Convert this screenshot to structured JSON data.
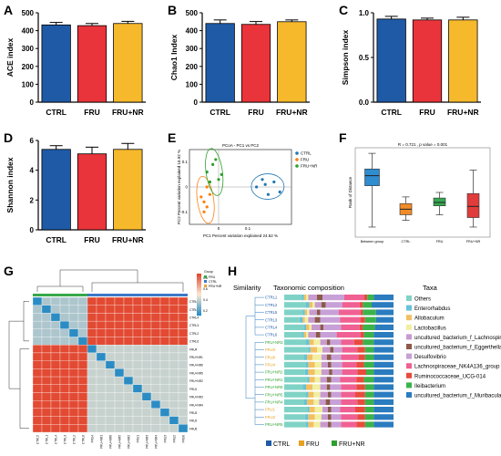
{
  "colors": {
    "CTRL": "#1f5aa6",
    "FRU": "#e8343a",
    "FRU+NR": "#f6b92c",
    "pcoa_ctrl": "#1f77b4",
    "pcoa_fru": "#ff7f0e",
    "pcoa_frunr": "#2ca02c",
    "heat_low": "#2b8cc4",
    "heat_mid": "#fbe9d2",
    "heat_high": "#e24a33",
    "box_fill": "#2f8ccf",
    "box_ctrl": "#f28c28",
    "box_fru": "#36a852",
    "box_frunr": "#e03c3c"
  },
  "panels": {
    "A": "A",
    "B": "B",
    "C": "C",
    "D": "D",
    "E": "E",
    "F": "F",
    "G": "G",
    "H": "H"
  },
  "pcoa": {
    "title": "PCoA - PC1 vs PC2",
    "xlabel": "PC1 Percent variation explained 24.62 %",
    "ylabel": "PC2 Percent variation explained 16.92 %",
    "legend": [
      "CTRL",
      "FRU",
      "FRU+NR"
    ],
    "xticks": [
      "0",
      "0.1"
    ],
    "yticks": [
      "0.1",
      "0",
      "-0.1"
    ]
  },
  "boxplot": {
    "title": "R = 0.721 , p value = 0.001",
    "ylabel": "Rank of Distance",
    "categories": [
      "Between group",
      "CTRL",
      "FRU",
      "FRU+NR"
    ]
  },
  "heatmap": {
    "legend_title": "Group",
    "legend_items": [
      "FRU",
      "CTRL",
      "FRU+NR"
    ],
    "row_labels": [
      "CTRL5",
      "CTRL1",
      "CTRL4",
      "CTRL3",
      "CTRL2",
      "CTRL6",
      "FRU4",
      "FRU+NR1",
      "FRU+NR6",
      "FRU+NR5",
      "FRU+NR2",
      "FRU1",
      "FRU+NR3",
      "FRU+NR4",
      "FRU3",
      "FRU2",
      "FRU6"
    ],
    "col_labels": [
      "CTRL5",
      "CTRL1",
      "CTRL4",
      "CTRL3",
      "CTRL2",
      "CTRL6",
      "FRU4",
      "FRU+NR1",
      "FRU+NR6",
      "FRU+NR5",
      "FRU+NR2",
      "FRU1",
      "FRU+NR3",
      "FRU+NR4",
      "FRU3",
      "FRU2",
      "FRU6"
    ],
    "scale_ticks": [
      "0.8",
      "0.6",
      "0.4",
      "0.2"
    ]
  },
  "taxa_panel": {
    "similarity_label": "Similarity",
    "composition_label": "Taxonomic composition",
    "taxa_label": "Taxa",
    "samples": [
      "CTRL1",
      "CTRL2",
      "CTRL5",
      "CTRL3",
      "CTRL4",
      "CTRL6",
      "FRU+NR3",
      "FRU3",
      "FRU6",
      "FRU4",
      "FRU+NR2",
      "FRU+NR1",
      "FRU+NR6",
      "FRU+NR5",
      "FRU+NR4",
      "FRU1",
      "FRU2",
      "FRU+NR5"
    ],
    "taxa": [
      "Others",
      "Enterorhabdus",
      "Allobaculum",
      "Lactobacillus",
      "uncultured_bacterium_f_Lachnospiraceae",
      "uncultured_bacterium_f_Eggerthellaceae",
      "Desulfovibrio",
      "Lachnospiraceae_NK4A136_group",
      "Ruminococcaceae_UCG-014",
      "Ileibacterium",
      "uncultured_bacterium_f_Muribaculaceae"
    ],
    "taxa_colors": [
      "#7fd3c6",
      "#66c3d8",
      "#f2c063",
      "#f1efa0",
      "#c79bd0",
      "#8c5a4a",
      "#c8a0d8",
      "#f06092",
      "#e84b3c",
      "#3ab34a",
      "#2a7cbf"
    ],
    "group_legend": [
      "CTRL",
      "FRU",
      "FRU+NR"
    ]
  },
  "chart_data": [
    {
      "type": "bar",
      "panel": "A",
      "ylabel": "ACE index",
      "categories": [
        "CTRL",
        "FRU",
        "FRU+NR"
      ],
      "values": [
        432,
        428,
        440
      ],
      "errors": [
        14,
        12,
        12
      ],
      "ylim": [
        0,
        500
      ],
      "yticks": [
        0,
        100,
        200,
        300,
        400,
        500
      ]
    },
    {
      "type": "bar",
      "panel": "B",
      "ylabel": "Chao1 Index",
      "categories": [
        "CTRL",
        "FRU",
        "FRU+NR"
      ],
      "values": [
        440,
        435,
        450
      ],
      "errors": [
        20,
        16,
        10
      ],
      "ylim": [
        0,
        500
      ],
      "yticks": [
        0,
        100,
        200,
        300,
        400,
        500
      ]
    },
    {
      "type": "bar",
      "panel": "C",
      "ylabel": "Simpson index",
      "categories": [
        "CTRL",
        "FRU",
        "FRU+NR"
      ],
      "values": [
        0.93,
        0.92,
        0.92
      ],
      "errors": [
        0.03,
        0.02,
        0.03
      ],
      "ylim": [
        0,
        1.0
      ],
      "yticks": [
        0.0,
        0.5,
        1.0
      ],
      "ytick_labels": [
        "0.0",
        "0.5",
        "1.0"
      ]
    },
    {
      "type": "bar",
      "panel": "D",
      "ylabel": "Shannon index",
      "categories": [
        "CTRL",
        "FRU",
        "FRU+NR"
      ],
      "values": [
        5.4,
        5.1,
        5.4
      ],
      "errors": [
        0.25,
        0.45,
        0.4
      ],
      "ylim": [
        0,
        6
      ],
      "yticks": [
        0,
        2,
        4,
        6
      ]
    },
    {
      "type": "scatter",
      "panel": "E",
      "series": [
        {
          "name": "CTRL",
          "x": [
            0.13,
            0.15,
            0.17,
            0.19,
            0.16,
            0.21
          ],
          "y": [
            0.0,
            0.03,
            -0.03,
            0.02,
            0.01,
            -0.02
          ]
        },
        {
          "name": "FRU",
          "x": [
            -0.06,
            -0.05,
            -0.04,
            -0.03,
            -0.05,
            -0.04
          ],
          "y": [
            -0.04,
            -0.06,
            -0.08,
            -0.03,
            -0.1,
            0.0
          ]
        },
        {
          "name": "FRU+NR",
          "x": [
            -0.04,
            -0.02,
            -0.01,
            0.0,
            -0.03,
            0.01
          ],
          "y": [
            0.06,
            0.09,
            0.11,
            0.03,
            0.02,
            0.05
          ]
        }
      ]
    },
    {
      "type": "box",
      "panel": "F",
      "categories": [
        "Between group",
        "CTRL",
        "FRU",
        "FRU+NR"
      ],
      "boxes": [
        {
          "min": 18,
          "q1": 92,
          "median": 110,
          "q3": 122,
          "max": 150
        },
        {
          "min": 30,
          "q1": 40,
          "median": 50,
          "q3": 60,
          "max": 72
        },
        {
          "min": 40,
          "q1": 56,
          "median": 62,
          "q3": 70,
          "max": 80
        },
        {
          "min": 18,
          "q1": 35,
          "median": 55,
          "q3": 78,
          "max": 120
        }
      ],
      "ylim": [
        0,
        160
      ]
    },
    {
      "type": "heatmap",
      "panel": "G",
      "blocks": [
        {
          "rows": [
            0,
            6
          ],
          "cols": [
            0,
            6
          ],
          "value": 0.25
        },
        {
          "rows": [
            6,
            17
          ],
          "cols": [
            6,
            17
          ],
          "value": 0.3
        },
        {
          "rows": [
            0,
            6
          ],
          "cols": [
            6,
            17
          ],
          "value": 0.8
        },
        {
          "rows": [
            6,
            17
          ],
          "cols": [
            0,
            6
          ],
          "value": 0.8
        }
      ],
      "diagonal": 0.0,
      "scale": [
        0,
        0.8
      ]
    },
    {
      "type": "bar",
      "panel": "H",
      "stacked": true,
      "orientation": "horizontal",
      "samples": [
        "CTRL1",
        "CTRL2",
        "CTRL5",
        "CTRL3",
        "CTRL4",
        "CTRL6",
        "FRU+NR3",
        "FRU3",
        "FRU6",
        "FRU4",
        "FRU+NR2",
        "FRU+NR1",
        "FRU+NR6",
        "FRU+NR5",
        "FRU+NR4",
        "FRU1",
        "FRU2",
        "FRU+NR5"
      ],
      "proportions": [
        [
          0.16,
          0.02,
          0.02,
          0.02,
          0.08,
          0.05,
          0.2,
          0.18,
          0.03,
          0.06,
          0.18
        ],
        [
          0.2,
          0.03,
          0.03,
          0.02,
          0.06,
          0.04,
          0.15,
          0.16,
          0.03,
          0.08,
          0.2
        ],
        [
          0.17,
          0.02,
          0.02,
          0.02,
          0.07,
          0.03,
          0.17,
          0.2,
          0.02,
          0.12,
          0.16
        ],
        [
          0.14,
          0.03,
          0.02,
          0.03,
          0.06,
          0.05,
          0.18,
          0.19,
          0.04,
          0.1,
          0.16
        ],
        [
          0.18,
          0.02,
          0.03,
          0.02,
          0.08,
          0.03,
          0.16,
          0.17,
          0.03,
          0.11,
          0.17
        ],
        [
          0.16,
          0.02,
          0.02,
          0.02,
          0.07,
          0.04,
          0.15,
          0.22,
          0.03,
          0.09,
          0.18
        ],
        [
          0.2,
          0.03,
          0.04,
          0.06,
          0.06,
          0.03,
          0.1,
          0.12,
          0.08,
          0.1,
          0.18
        ],
        [
          0.22,
          0.02,
          0.06,
          0.05,
          0.07,
          0.03,
          0.08,
          0.14,
          0.07,
          0.08,
          0.18
        ],
        [
          0.18,
          0.03,
          0.05,
          0.08,
          0.05,
          0.04,
          0.09,
          0.16,
          0.06,
          0.08,
          0.18
        ],
        [
          0.2,
          0.02,
          0.06,
          0.06,
          0.06,
          0.03,
          0.1,
          0.13,
          0.07,
          0.09,
          0.18
        ],
        [
          0.19,
          0.03,
          0.06,
          0.06,
          0.07,
          0.03,
          0.09,
          0.14,
          0.08,
          0.07,
          0.18
        ],
        [
          0.21,
          0.02,
          0.05,
          0.05,
          0.06,
          0.04,
          0.08,
          0.15,
          0.07,
          0.09,
          0.18
        ],
        [
          0.17,
          0.03,
          0.06,
          0.07,
          0.06,
          0.03,
          0.1,
          0.14,
          0.08,
          0.08,
          0.18
        ],
        [
          0.2,
          0.02,
          0.05,
          0.06,
          0.07,
          0.03,
          0.09,
          0.13,
          0.09,
          0.08,
          0.18
        ],
        [
          0.18,
          0.03,
          0.06,
          0.05,
          0.06,
          0.04,
          0.1,
          0.15,
          0.07,
          0.08,
          0.18
        ],
        [
          0.21,
          0.02,
          0.05,
          0.07,
          0.05,
          0.03,
          0.08,
          0.14,
          0.09,
          0.08,
          0.18
        ],
        [
          0.19,
          0.03,
          0.06,
          0.06,
          0.06,
          0.03,
          0.09,
          0.15,
          0.07,
          0.08,
          0.18
        ],
        [
          0.2,
          0.02,
          0.05,
          0.06,
          0.07,
          0.03,
          0.09,
          0.14,
          0.08,
          0.08,
          0.18
        ]
      ]
    }
  ]
}
